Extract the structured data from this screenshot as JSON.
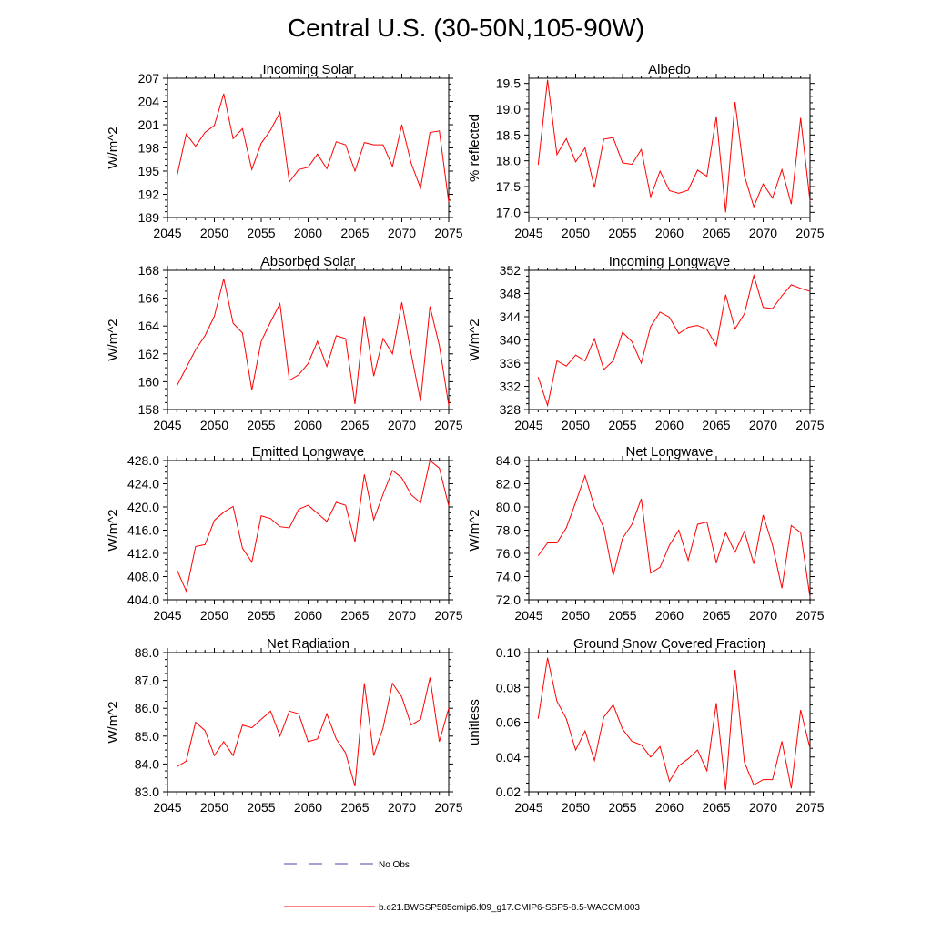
{
  "figure": {
    "title": "Central U.S. (30-50N,105-90W)"
  },
  "colors": {
    "model_line": "#ff0000",
    "obs_line": "#4444aa",
    "axes": "#000000"
  },
  "legend": {
    "obs_label": "No Obs",
    "model_label": "b.e21.BWSSP585cmip6.f09_g17.CMIP6-SSP5-8.5-WACCM.003"
  },
  "chart_data": [
    {
      "id": "incoming-solar",
      "type": "line",
      "title": "Incoming Solar",
      "xlabel": "",
      "ylabel": "W/m^2",
      "xlim": [
        2045,
        2075
      ],
      "ylim": [
        189,
        207
      ],
      "yticks": [
        189,
        192,
        195,
        198,
        201,
        204,
        207
      ],
      "ytick_labels": [
        "189",
        "192",
        "195",
        "198",
        "201",
        "204",
        "207"
      ],
      "xticks": [
        2045,
        2050,
        2055,
        2060,
        2065,
        2070,
        2075
      ],
      "xtick_labels": [
        "2045",
        "2050",
        "2055",
        "2060",
        "2065",
        "2070",
        "2075"
      ],
      "x": [
        2046,
        2047,
        2048,
        2049,
        2050,
        2051,
        2052,
        2053,
        2054,
        2055,
        2056,
        2057,
        2058,
        2059,
        2060,
        2061,
        2062,
        2063,
        2064,
        2065,
        2066,
        2067,
        2068,
        2069,
        2070,
        2071,
        2072,
        2073,
        2074,
        2075
      ],
      "series": [
        {
          "name": "b.e21.BWSSP585cmip6.f09_g17.CMIP6-SSP5-8.5-WACCM.003",
          "values": [
            194.3,
            199.8,
            198.2,
            200.0,
            200.9,
            205.0,
            199.2,
            200.5,
            195.2,
            198.6,
            200.3,
            202.6,
            193.6,
            195.2,
            195.5,
            197.2,
            195.3,
            198.8,
            198.4,
            195.0,
            198.7,
            198.4,
            198.4,
            195.6,
            201.0,
            196.0,
            192.8,
            200.0,
            200.2,
            191.0
          ]
        }
      ]
    },
    {
      "id": "albedo",
      "type": "line",
      "title": "Albedo",
      "xlabel": "",
      "ylabel": "% reflected",
      "xlim": [
        2045,
        2075
      ],
      "ylim": [
        16.9,
        19.6
      ],
      "yticks": [
        17.0,
        17.5,
        18.0,
        18.5,
        19.0,
        19.5
      ],
      "ytick_labels": [
        "17.0",
        "17.5",
        "18.0",
        "18.5",
        "19.0",
        "19.5"
      ],
      "xticks": [
        2045,
        2050,
        2055,
        2060,
        2065,
        2070,
        2075
      ],
      "xtick_labels": [
        "2045",
        "2050",
        "2055",
        "2060",
        "2065",
        "2070",
        "2075"
      ],
      "x": [
        2046,
        2047,
        2048,
        2049,
        2050,
        2051,
        2052,
        2053,
        2054,
        2055,
        2056,
        2057,
        2058,
        2059,
        2060,
        2061,
        2062,
        2063,
        2064,
        2065,
        2066,
        2067,
        2068,
        2069,
        2070,
        2071,
        2072,
        2073,
        2074,
        2075
      ],
      "series": [
        {
          "name": "b.e21.BWSSP585cmip6.f09_g17.CMIP6-SSP5-8.5-WACCM.003",
          "values": [
            17.92,
            19.57,
            18.12,
            18.43,
            17.98,
            18.25,
            17.48,
            18.42,
            18.45,
            17.96,
            17.93,
            18.22,
            17.3,
            17.8,
            17.42,
            17.37,
            17.43,
            17.82,
            17.7,
            18.86,
            17.0,
            19.14,
            17.71,
            17.11,
            17.55,
            17.28,
            17.83,
            17.16,
            18.83,
            17.22
          ]
        }
      ]
    },
    {
      "id": "absorbed-solar",
      "type": "line",
      "title": "Absorbed Solar",
      "xlabel": "",
      "ylabel": "W/m^2",
      "xlim": [
        2045,
        2075
      ],
      "ylim": [
        158,
        168
      ],
      "yticks": [
        158,
        160,
        162,
        164,
        166,
        168
      ],
      "ytick_labels": [
        "158",
        "160",
        "162",
        "164",
        "166",
        "168"
      ],
      "xticks": [
        2045,
        2050,
        2055,
        2060,
        2065,
        2070,
        2075
      ],
      "xtick_labels": [
        "2045",
        "2050",
        "2055",
        "2060",
        "2065",
        "2070",
        "2075"
      ],
      "x": [
        2046,
        2047,
        2048,
        2049,
        2050,
        2051,
        2052,
        2053,
        2054,
        2055,
        2056,
        2057,
        2058,
        2059,
        2060,
        2061,
        2062,
        2063,
        2064,
        2065,
        2066,
        2067,
        2068,
        2069,
        2070,
        2071,
        2072,
        2073,
        2074,
        2075
      ],
      "series": [
        {
          "name": "b.e21.BWSSP585cmip6.f09_g17.CMIP6-SSP5-8.5-WACCM.003",
          "values": [
            159.7,
            161.0,
            162.3,
            163.3,
            164.7,
            167.4,
            164.2,
            163.5,
            159.4,
            162.9,
            164.3,
            165.6,
            160.1,
            160.5,
            161.3,
            162.9,
            161.1,
            163.3,
            163.1,
            158.4,
            164.7,
            160.4,
            163.1,
            162.0,
            165.7,
            162.0,
            158.6,
            165.4,
            162.6,
            158.3
          ]
        }
      ]
    },
    {
      "id": "incoming-longwave",
      "type": "line",
      "title": "Incoming Longwave",
      "xlabel": "",
      "ylabel": "W/m^2",
      "xlim": [
        2045,
        2075
      ],
      "ylim": [
        328,
        352
      ],
      "yticks": [
        328,
        332,
        336,
        340,
        344,
        348,
        352
      ],
      "ytick_labels": [
        "328",
        "332",
        "336",
        "340",
        "344",
        "348",
        "352"
      ],
      "xticks": [
        2045,
        2050,
        2055,
        2060,
        2065,
        2070,
        2075
      ],
      "xtick_labels": [
        "2045",
        "2050",
        "2055",
        "2060",
        "2065",
        "2070",
        "2075"
      ],
      "x": [
        2046,
        2047,
        2048,
        2049,
        2050,
        2051,
        2052,
        2053,
        2054,
        2055,
        2056,
        2057,
        2058,
        2059,
        2060,
        2061,
        2062,
        2063,
        2064,
        2065,
        2066,
        2067,
        2068,
        2069,
        2070,
        2071,
        2072,
        2073,
        2074,
        2075
      ],
      "series": [
        {
          "name": "b.e21.BWSSP585cmip6.f09_g17.CMIP6-SSP5-8.5-WACCM.003",
          "values": [
            333.6,
            328.7,
            336.4,
            335.5,
            337.4,
            336.4,
            340.2,
            334.9,
            336.4,
            341.3,
            339.7,
            336.0,
            342.3,
            344.8,
            343.9,
            341.1,
            342.2,
            342.5,
            341.8,
            339.0,
            347.8,
            341.9,
            344.5,
            351.1,
            345.6,
            345.4,
            347.6,
            349.5,
            348.9,
            348.4
          ]
        }
      ]
    },
    {
      "id": "emitted-longwave",
      "type": "line",
      "title": "Emitted Longwave",
      "xlabel": "",
      "ylabel": "W/m^2",
      "xlim": [
        2045,
        2075
      ],
      "ylim": [
        404,
        428
      ],
      "yticks": [
        404,
        408,
        412,
        416,
        420,
        424,
        428
      ],
      "ytick_labels": [
        "404.0",
        "408.0",
        "412.0",
        "416.0",
        "420.0",
        "424.0",
        "428.0"
      ],
      "xticks": [
        2045,
        2050,
        2055,
        2060,
        2065,
        2070,
        2075
      ],
      "xtick_labels": [
        "2045",
        "2050",
        "2055",
        "2060",
        "2065",
        "2070",
        "2075"
      ],
      "x": [
        2046,
        2047,
        2048,
        2049,
        2050,
        2051,
        2052,
        2053,
        2054,
        2055,
        2056,
        2057,
        2058,
        2059,
        2060,
        2061,
        2062,
        2063,
        2064,
        2065,
        2066,
        2067,
        2068,
        2069,
        2070,
        2071,
        2072,
        2073,
        2074,
        2075
      ],
      "series": [
        {
          "name": "b.e21.BWSSP585cmip6.f09_g17.CMIP6-SSP5-8.5-WACCM.003",
          "values": [
            409.2,
            405.5,
            413.2,
            413.5,
            417.7,
            419.1,
            420.1,
            412.9,
            410.5,
            418.5,
            418.0,
            416.6,
            416.4,
            419.6,
            420.3,
            418.9,
            417.5,
            420.8,
            420.3,
            414.0,
            425.6,
            417.8,
            422.2,
            426.3,
            425.0,
            422.1,
            420.7,
            428.0,
            426.7,
            420.2
          ]
        }
      ]
    },
    {
      "id": "net-longwave",
      "type": "line",
      "title": "Net Longwave",
      "xlabel": "",
      "ylabel": "W/m^2",
      "xlim": [
        2045,
        2075
      ],
      "ylim": [
        72,
        84
      ],
      "yticks": [
        72,
        74,
        76,
        78,
        80,
        82,
        84
      ],
      "ytick_labels": [
        "72.0",
        "74.0",
        "76.0",
        "78.0",
        "80.0",
        "82.0",
        "84.0"
      ],
      "xticks": [
        2045,
        2050,
        2055,
        2060,
        2065,
        2070,
        2075
      ],
      "xtick_labels": [
        "2045",
        "2050",
        "2055",
        "2060",
        "2065",
        "2070",
        "2075"
      ],
      "x": [
        2046,
        2047,
        2048,
        2049,
        2050,
        2051,
        2052,
        2053,
        2054,
        2055,
        2056,
        2057,
        2058,
        2059,
        2060,
        2061,
        2062,
        2063,
        2064,
        2065,
        2066,
        2067,
        2068,
        2069,
        2070,
        2071,
        2072,
        2073,
        2074,
        2075
      ],
      "series": [
        {
          "name": "b.e21.BWSSP585cmip6.f09_g17.CMIP6-SSP5-8.5-WACCM.003",
          "values": [
            75.8,
            76.9,
            76.9,
            78.2,
            80.4,
            82.7,
            80.0,
            78.2,
            74.1,
            77.3,
            78.5,
            80.7,
            74.3,
            74.8,
            76.7,
            78.0,
            75.4,
            78.5,
            78.7,
            75.2,
            77.8,
            76.1,
            77.9,
            75.1,
            79.3,
            76.7,
            73.0,
            78.4,
            77.8,
            72.2
          ]
        }
      ]
    },
    {
      "id": "net-radiation",
      "type": "line",
      "title": "Net Radiation",
      "xlabel": "",
      "ylabel": "W/m^2",
      "xlim": [
        2045,
        2075
      ],
      "ylim": [
        83,
        88
      ],
      "yticks": [
        83,
        84,
        85,
        86,
        87,
        88
      ],
      "ytick_labels": [
        "83.0",
        "84.0",
        "85.0",
        "86.0",
        "87.0",
        "88.0"
      ],
      "xticks": [
        2045,
        2050,
        2055,
        2060,
        2065,
        2070,
        2075
      ],
      "xtick_labels": [
        "2045",
        "2050",
        "2055",
        "2060",
        "2065",
        "2070",
        "2075"
      ],
      "x": [
        2046,
        2047,
        2048,
        2049,
        2050,
        2051,
        2052,
        2053,
        2054,
        2055,
        2056,
        2057,
        2058,
        2059,
        2060,
        2061,
        2062,
        2063,
        2064,
        2065,
        2066,
        2067,
        2068,
        2069,
        2070,
        2071,
        2072,
        2073,
        2074,
        2075
      ],
      "series": [
        {
          "name": "b.e21.BWSSP585cmip6.f09_g17.CMIP6-SSP5-8.5-WACCM.003",
          "values": [
            83.9,
            84.1,
            85.5,
            85.2,
            84.3,
            84.8,
            84.3,
            85.4,
            85.3,
            85.6,
            85.9,
            85.0,
            85.9,
            85.8,
            84.8,
            84.9,
            85.8,
            84.9,
            84.4,
            83.2,
            86.9,
            84.3,
            85.3,
            86.9,
            86.4,
            85.4,
            85.6,
            87.1,
            84.8,
            86.0
          ]
        }
      ]
    },
    {
      "id": "ground-snow",
      "type": "line",
      "title": "Ground Snow Covered Fraction",
      "xlabel": "",
      "ylabel": "unitless",
      "xlim": [
        2045,
        2075
      ],
      "ylim": [
        0.02,
        0.1
      ],
      "yticks": [
        0.02,
        0.04,
        0.06,
        0.08,
        0.1
      ],
      "ytick_labels": [
        "0.02",
        "0.04",
        "0.06",
        "0.08",
        "0.10"
      ],
      "xticks": [
        2045,
        2050,
        2055,
        2060,
        2065,
        2070,
        2075
      ],
      "xtick_labels": [
        "2045",
        "2050",
        "2055",
        "2060",
        "2065",
        "2070",
        "2075"
      ],
      "x": [
        2046,
        2047,
        2048,
        2049,
        2050,
        2051,
        2052,
        2053,
        2054,
        2055,
        2056,
        2057,
        2058,
        2059,
        2060,
        2061,
        2062,
        2063,
        2064,
        2065,
        2066,
        2067,
        2068,
        2069,
        2070,
        2071,
        2072,
        2073,
        2074,
        2075
      ],
      "series": [
        {
          "name": "b.e21.BWSSP585cmip6.f09_g17.CMIP6-SSP5-8.5-WACCM.003",
          "values": [
            0.062,
            0.097,
            0.072,
            0.062,
            0.044,
            0.055,
            0.038,
            0.063,
            0.07,
            0.056,
            0.049,
            0.047,
            0.04,
            0.046,
            0.026,
            0.035,
            0.039,
            0.044,
            0.032,
            0.071,
            0.021,
            0.09,
            0.037,
            0.024,
            0.027,
            0.027,
            0.049,
            0.022,
            0.067,
            0.045
          ]
        }
      ]
    }
  ]
}
